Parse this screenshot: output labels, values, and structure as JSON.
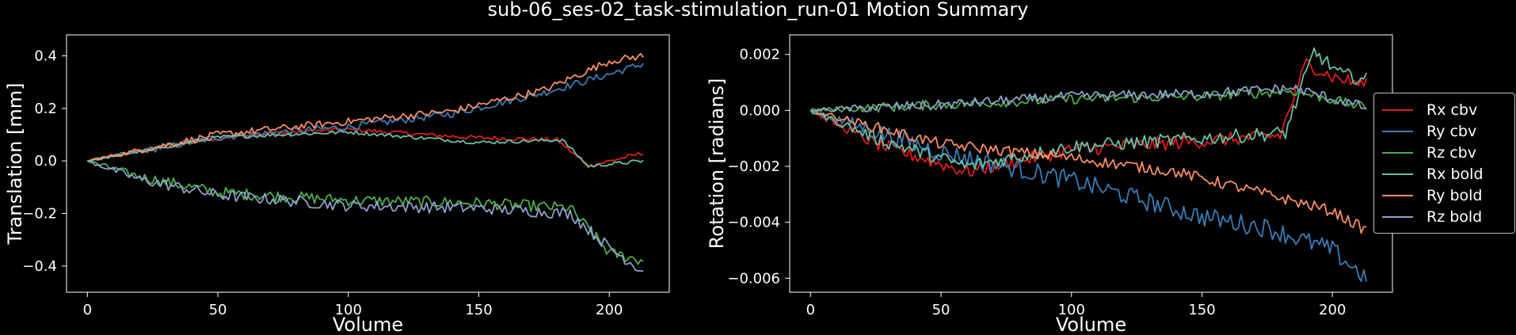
{
  "suptitle": "sub-06_ses-02_task-stimulation_run-01 Motion Summary",
  "colors": {
    "Rx cbv": "#e41a1c",
    "Ry cbv": "#377eb8",
    "Rz cbv": "#4daf4a",
    "Rx bold": "#66c2a5",
    "Ry bold": "#fc8d62",
    "Rz bold": "#8da0cb"
  },
  "legend": {
    "placement": "right, outside",
    "entries": [
      "Rx cbv",
      "Ry cbv",
      "Rz cbv",
      "Rx bold",
      "Ry bold",
      "Rz bold"
    ]
  },
  "chart_data": [
    {
      "type": "line",
      "xlabel": "Volume",
      "ylabel": "Translation [mm]",
      "xlim": [
        -8,
        223
      ],
      "ylim": [
        -0.5,
        0.48
      ],
      "xticks": [
        "0",
        "50",
        "100",
        "150",
        "200"
      ],
      "yticks": [
        "−0.4",
        "−0.2",
        "0.0",
        "0.2",
        "0.4"
      ],
      "grid": false,
      "n_volumes": 214,
      "series": [
        {
          "name": "Rx cbv",
          "knots": [
            [
              0,
              0.0
            ],
            [
              20,
              0.04
            ],
            [
              60,
              0.1
            ],
            [
              100,
              0.12
            ],
            [
              145,
              0.09
            ],
            [
              180,
              0.08
            ],
            [
              192,
              -0.02
            ],
            [
              213,
              0.03
            ]
          ],
          "noise": 0.008
        },
        {
          "name": "Ry cbv",
          "knots": [
            [
              0,
              0.0
            ],
            [
              50,
              0.09
            ],
            [
              100,
              0.13
            ],
            [
              140,
              0.18
            ],
            [
              175,
              0.26
            ],
            [
              200,
              0.33
            ],
            [
              213,
              0.37
            ]
          ],
          "noise": 0.014
        },
        {
          "name": "Rz cbv",
          "knots": [
            [
              0,
              0.0
            ],
            [
              20,
              -0.06
            ],
            [
              50,
              -0.12
            ],
            [
              100,
              -0.15
            ],
            [
              150,
              -0.16
            ],
            [
              185,
              -0.18
            ],
            [
              200,
              -0.35
            ],
            [
              213,
              -0.38
            ]
          ],
          "noise": 0.022
        },
        {
          "name": "Rx bold",
          "knots": [
            [
              0,
              0.0
            ],
            [
              50,
              0.09
            ],
            [
              100,
              0.11
            ],
            [
              150,
              0.07
            ],
            [
              182,
              0.08
            ],
            [
              192,
              -0.02
            ],
            [
              213,
              0.0
            ]
          ],
          "noise": 0.007
        },
        {
          "name": "Ry bold",
          "knots": [
            [
              0,
              0.0
            ],
            [
              50,
              0.1
            ],
            [
              100,
              0.15
            ],
            [
              140,
              0.19
            ],
            [
              175,
              0.27
            ],
            [
              200,
              0.38
            ],
            [
              213,
              0.4
            ]
          ],
          "noise": 0.014
        },
        {
          "name": "Rz bold",
          "knots": [
            [
              0,
              0.0
            ],
            [
              20,
              -0.07
            ],
            [
              50,
              -0.13
            ],
            [
              100,
              -0.17
            ],
            [
              150,
              -0.18
            ],
            [
              185,
              -0.2
            ],
            [
              200,
              -0.33
            ],
            [
              213,
              -0.42
            ]
          ],
          "noise": 0.022
        }
      ]
    },
    {
      "type": "line",
      "xlabel": "Volume",
      "ylabel": "Rotation [radians]",
      "xlim": [
        -8,
        223
      ],
      "ylim": [
        -0.0065,
        0.0027
      ],
      "xticks": [
        "0",
        "50",
        "100",
        "150",
        "200"
      ],
      "yticks": [
        "−0.006",
        "−0.004",
        "−0.002",
        "0.000",
        "0.002"
      ],
      "grid": false,
      "n_volumes": 214,
      "series": [
        {
          "name": "Rx cbv",
          "knots": [
            [
              0,
              0.0
            ],
            [
              25,
              -0.0012
            ],
            [
              60,
              -0.0022
            ],
            [
              100,
              -0.0014
            ],
            [
              150,
              -0.0011
            ],
            [
              180,
              -0.0009
            ],
            [
              190,
              0.0017
            ],
            [
              200,
              0.0012
            ],
            [
              213,
              0.0009
            ]
          ],
          "noise": 0.00025
        },
        {
          "name": "Ry cbv",
          "knots": [
            [
              0,
              0.0
            ],
            [
              50,
              -0.0015
            ],
            [
              100,
              -0.0025
            ],
            [
              150,
              -0.0038
            ],
            [
              175,
              -0.0042
            ],
            [
              200,
              -0.005
            ],
            [
              213,
              -0.006
            ]
          ],
          "noise": 0.00035
        },
        {
          "name": "Rz cbv",
          "knots": [
            [
              0,
              0.0
            ],
            [
              50,
              0.0002
            ],
            [
              100,
              0.0004
            ],
            [
              150,
              0.0005
            ],
            [
              185,
              0.0007
            ],
            [
              213,
              0.0001
            ]
          ],
          "noise": 0.00018
        },
        {
          "name": "Rx bold",
          "knots": [
            [
              0,
              0.0
            ],
            [
              25,
              -0.001
            ],
            [
              60,
              -0.002
            ],
            [
              100,
              -0.0013
            ],
            [
              150,
              -0.001
            ],
            [
              182,
              -0.0008
            ],
            [
              193,
              0.0021
            ],
            [
              203,
              0.0013
            ],
            [
              213,
              0.0011
            ]
          ],
          "noise": 0.00025
        },
        {
          "name": "Ry bold",
          "knots": [
            [
              0,
              0.0
            ],
            [
              50,
              -0.0012
            ],
            [
              100,
              -0.0017
            ],
            [
              140,
              -0.0022
            ],
            [
              175,
              -0.003
            ],
            [
              200,
              -0.0036
            ],
            [
              213,
              -0.0043
            ]
          ],
          "noise": 0.0002
        },
        {
          "name": "Rz bold",
          "knots": [
            [
              0,
              0.0
            ],
            [
              50,
              0.0002
            ],
            [
              100,
              0.0005
            ],
            [
              150,
              0.0006
            ],
            [
              185,
              0.0008
            ],
            [
              213,
              0.0001
            ]
          ],
          "noise": 0.00018
        }
      ]
    }
  ]
}
